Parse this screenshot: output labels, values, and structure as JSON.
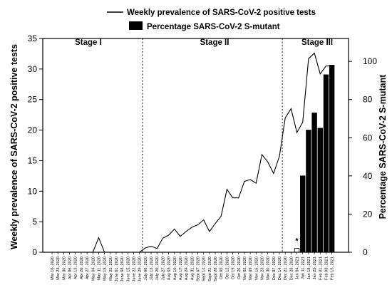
{
  "chart_data": {
    "type": "bar+line",
    "x": [
      "Mar 16, 2020",
      "Mar 23, 2020",
      "Mar 30, 2020",
      "Apr 06, 2020",
      "Apr 13, 2020",
      "Apr 20, 2020",
      "Apr 27, 2020",
      "May 04, 2020",
      "May 11, 2020",
      "May 18, 2020",
      "May 25, 2020",
      "June 01, 2020",
      "June 08, 2020",
      "June 15, 2020",
      "June 22, 2020",
      "June 29, 2020",
      "July 06, 2020",
      "July 13, 2020",
      "July 20, 2020",
      "July 27, 2020",
      "Aug 03, 2020",
      "Aug 10, 2020",
      "Aug 17, 2020",
      "Aug 24, 2020",
      "Aug 31, 2020",
      "Sept 07, 2020",
      "Sept 14, 2020",
      "Sept 21, 2020",
      "Sept 28, 2020",
      "Oct 05, 2020",
      "Oct 12, 2020",
      "Oct 19, 2020",
      "Oct 26, 2020",
      "Nov 02, 2020",
      "Nov 09, 2020",
      "Nov 16, 2020",
      "Nov 23, 2020",
      "Nov 30, 2020",
      "Dec 07, 2020",
      "Dec 14, 2020",
      "Dec 21, 2020",
      "Dec 28, 2020",
      "Jan 04, 2021",
      "Jan 11, 2021",
      "Jan 18, 2021",
      "Jan 25, 2021",
      "Feb 01, 2021",
      "Feb 08, 2021",
      "Feb 15, 2021"
    ],
    "series": [
      {
        "name": "Weekly prevalence of SARS-CoV-2 positive tests",
        "kind": "line",
        "axis": "left",
        "values": [
          0,
          0,
          0,
          0,
          0,
          0,
          0,
          0,
          2.4,
          0,
          0,
          0,
          0,
          0,
          0,
          0,
          0.7,
          1.0,
          0.6,
          2.3,
          2.8,
          3.8,
          2.6,
          3.4,
          4.1,
          4.5,
          5.3,
          3.4,
          4.7,
          5.9,
          10.3,
          8.9,
          8.9,
          11.6,
          11.9,
          11.3,
          16.0,
          14.8,
          12.9,
          15.7,
          22.0,
          23.5,
          19.6,
          21.3,
          31.7,
          32.6,
          29.2,
          30.5,
          30.5
        ]
      },
      {
        "name": "Percentage SARS-CoV-2 S-mutant",
        "kind": "bar",
        "axis": "right",
        "values": [
          null,
          null,
          null,
          null,
          null,
          null,
          null,
          null,
          null,
          null,
          null,
          null,
          null,
          null,
          null,
          null,
          null,
          null,
          null,
          null,
          null,
          null,
          null,
          null,
          null,
          null,
          null,
          null,
          null,
          null,
          null,
          null,
          null,
          null,
          null,
          null,
          null,
          null,
          null,
          null,
          null,
          null,
          2,
          40,
          64,
          73,
          65,
          93,
          98
        ]
      }
    ],
    "left_axis": {
      "label": "Weekly prevalence of SARS-CoV-2 positive tests",
      "range": [
        0,
        35
      ],
      "ticks": [
        "0",
        "5",
        "10",
        "15",
        "20",
        "25",
        "30",
        "35"
      ]
    },
    "right_axis": {
      "label": "Percentage SARS-CoV-2 S-mutant",
      "range": [
        0,
        112
      ],
      "ticks": [
        "0",
        "20",
        "40",
        "60",
        "80",
        "100"
      ]
    },
    "stages": [
      {
        "label": "Stage I"
      },
      {
        "label": "Stage II"
      },
      {
        "label": "Stage III"
      }
    ],
    "stage_dividers": [
      "June 29, 2020",
      "Dec 14, 2020"
    ],
    "annotation": "*",
    "legend": [
      {
        "label": "Weekly prevalence of SARS-CoV-2 positive tests",
        "symbol": "line"
      },
      {
        "label": "Percentage SARS-CoV-2 S-mutant",
        "symbol": "bar"
      }
    ],
    "legend_position": "top-center",
    "grid": false,
    "colors": {
      "line": "#000000",
      "bar": "#000000",
      "background": "#ffffff"
    }
  }
}
